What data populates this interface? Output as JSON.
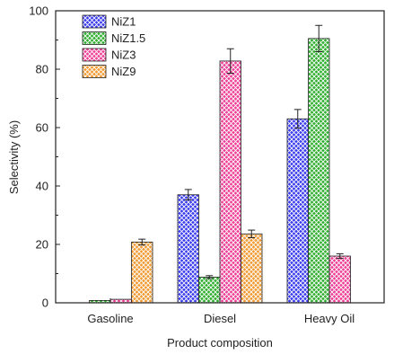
{
  "chart_data": {
    "type": "bar",
    "categories": [
      "Gasoline",
      "Diesel",
      "Heavy Oil"
    ],
    "series": [
      {
        "name": "NiZ1",
        "values": [
          0,
          37,
          63
        ],
        "errors": [
          0,
          1.8,
          3.2
        ]
      },
      {
        "name": "NiZ1.5",
        "values": [
          0.8,
          8.8,
          90.5
        ],
        "errors": [
          0,
          0.5,
          4.5
        ]
      },
      {
        "name": "NiZ3",
        "values": [
          1.2,
          82.8,
          16
        ],
        "errors": [
          0,
          4.2,
          0.8
        ]
      },
      {
        "name": "NiZ9",
        "values": [
          20.8,
          23.6,
          0
        ],
        "errors": [
          1.0,
          1.3,
          0
        ]
      }
    ],
    "xlabel": "Product composition",
    "ylabel": "Selectivity (%)",
    "ylim": [
      0,
      100
    ],
    "yticks": [
      "0",
      "20",
      "40",
      "60",
      "80",
      "100"
    ],
    "legend": "top-left",
    "grid": false,
    "colors": {
      "NiZ1": "#3b3bee",
      "NiZ1.5": "#2fae2f",
      "NiZ3": "#ec3f95",
      "NiZ9": "#f29a32"
    }
  }
}
